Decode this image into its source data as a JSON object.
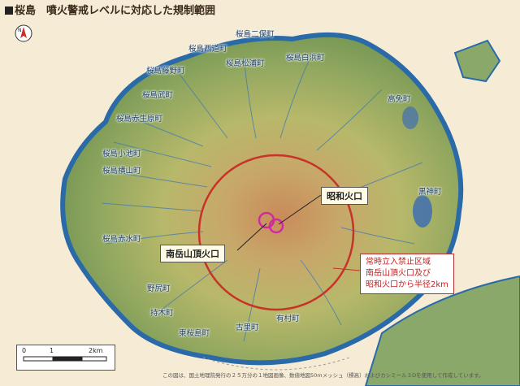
{
  "title": "桜島　噴火警戒レベルに対応した規制範囲",
  "towns": {
    "nibamachi": "桜島二俣町",
    "nishimichi": "桜島西道町",
    "shirahama": "桜島白浜町",
    "fujino": "桜島藤野町",
    "matsuura": "桜島松浦町",
    "take": "桜島武町",
    "akamizu_harubara": "桜島赤生原町",
    "koike": "桜島小池町",
    "yokoyama": "桜島横山町",
    "akamizu": "桜島赤水町",
    "takamen": "高免町",
    "kurokami": "黒神町",
    "nojiri": "野尻町",
    "mochiki": "持木町",
    "higashisakurajima": "東桜島町",
    "furusato": "古里町",
    "arimura": "有村町"
  },
  "craters": {
    "showa": "昭和火口",
    "minamidake": "南岳山頂火口"
  },
  "zone_note": [
    "常時立入禁止区域",
    "南岳山頂火口及び",
    "昭和火口から半径2km"
  ],
  "scale": {
    "zero": "0",
    "one": "1",
    "two": "2km"
  },
  "credit": "この図は、国土地理院発行の２５万分の１地図画像、数値地図50mメッシュ（標高）およびカシミール３Dを使用して作成しています。",
  "colors": {
    "restriction_circle": "#c83228",
    "note_text": "#c42020",
    "sea": "#f6ecd6"
  }
}
